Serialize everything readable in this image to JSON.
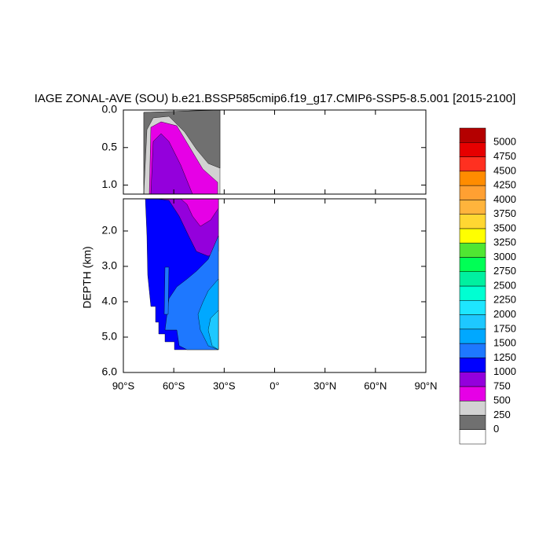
{
  "chart_data": {
    "type": "contour",
    "title": "IAGE ZONAL-AVE (SOU) b.e21.BSSP585cmip6.f19_g17.CMIP6-SSP5-8.5.001 [2015-2100]",
    "ylabel": "DEPTH (km)",
    "xlim": [
      -90,
      90
    ],
    "xticks": [
      {
        "value": -90,
        "label": "90°S"
      },
      {
        "value": -60,
        "label": "60°S"
      },
      {
        "value": -30,
        "label": "30°S"
      },
      {
        "value": 0,
        "label": "0°"
      },
      {
        "value": 30,
        "label": "30°N"
      },
      {
        "value": 60,
        "label": "60°N"
      },
      {
        "value": 90,
        "label": "90°N"
      }
    ],
    "panels": [
      {
        "ylim": [
          0,
          1.12
        ],
        "yticks": [
          {
            "value": 0,
            "label": "0.0"
          },
          {
            "value": 0.5,
            "label": "0.5"
          },
          {
            "value": 1,
            "label": "1.0"
          }
        ]
      },
      {
        "ylim": [
          1.09,
          6
        ],
        "yticks": [
          {
            "value": 2,
            "label": "2.0"
          },
          {
            "value": 3,
            "label": "3.0"
          },
          {
            "value": 4,
            "label": "4.0"
          },
          {
            "value": 5,
            "label": "5.0"
          },
          {
            "value": 6,
            "label": "6.0"
          }
        ]
      }
    ],
    "colorbar": {
      "levels": [
        0,
        250,
        500,
        750,
        1000,
        1250,
        1500,
        1750,
        2000,
        2250,
        2500,
        2750,
        3000,
        3250,
        3500,
        3750,
        4000,
        4250,
        4500,
        4750,
        5000
      ],
      "colors": [
        "#ffffff",
        "#707070",
        "#d2d2d2",
        "#e600e6",
        "#9400dc",
        "#0000ff",
        "#1e78ff",
        "#00a8ff",
        "#1ec8ff",
        "#1ee6ff",
        "#00ffd2",
        "#00f0a0",
        "#00ff55",
        "#50e632",
        "#ffff00",
        "#ffd732",
        "#ffb43c",
        "#ffa032",
        "#ff8c00",
        "#ff3020",
        "#e60000",
        "#b40000"
      ]
    }
  }
}
